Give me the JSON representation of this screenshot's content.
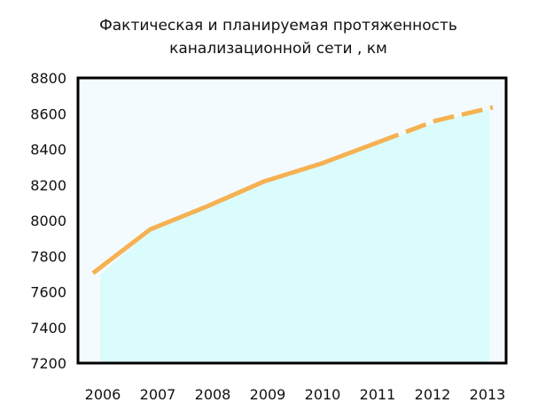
{
  "chart_data": {
    "type": "line",
    "title_lines": [
      "Фактическая  и  планируемая протяженность",
      "канализационной сети ,  км"
    ],
    "xlabel": "",
    "ylabel": "",
    "x": [
      "2006",
      "2007",
      "2008",
      "2009",
      "2010",
      "2011",
      "2012",
      "2013"
    ],
    "ylim": [
      7200,
      8800
    ],
    "yticks": [
      7200,
      7400,
      7600,
      7800,
      8000,
      8200,
      8400,
      8600,
      8800
    ],
    "grid": false,
    "legend": "none",
    "series": [
      {
        "values": [
          7705,
          7950,
          8080,
          8220,
          8320,
          8440,
          8560,
          8635
        ],
        "actual_until_index": 5,
        "projection_style": "dashed"
      }
    ],
    "area_fill_to_index": 7,
    "colors": {
      "line": "#f6b152",
      "area_fill": "#dafcfc",
      "plot_background": "#f3fbff",
      "frame": "#000000"
    }
  }
}
